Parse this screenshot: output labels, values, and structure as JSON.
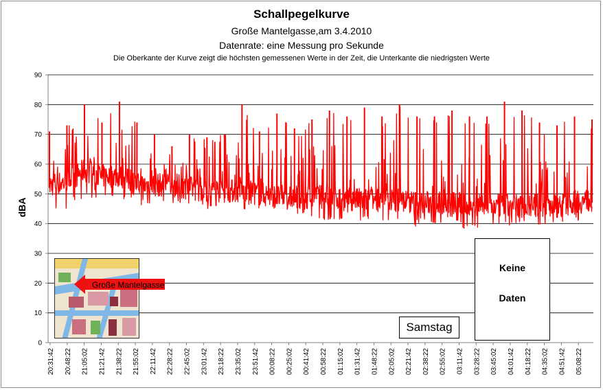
{
  "chart_data": {
    "type": "line",
    "title": "Schallpegelkurve",
    "subtitle_lines": [
      "Große Mantelgasse,am 3.4.2010",
      "Datenrate: eine Messung pro Sekunde",
      "Die Oberkante der Kurve zeigt die höchsten  gemessenen Werte  in der Zeit, die Unterkante  die niedrigsten Werte"
    ],
    "xlabel": "",
    "ylabel": "dBA",
    "ylim": [
      0,
      90
    ],
    "yticks": [
      0,
      10,
      20,
      30,
      40,
      50,
      60,
      70,
      80,
      90
    ],
    "grid": true,
    "legend": "none",
    "line_color": "#ff0000",
    "x_tick_labels": [
      "20:31:42",
      "20:48:22",
      "21:05:02",
      "21:21:42",
      "21:38:22",
      "21:55:02",
      "22:11:42",
      "22:28:22",
      "22:45:02",
      "23:01:42",
      "23:18:22",
      "23:35:02",
      "23:51:42",
      "00:08:22",
      "00:25:02",
      "00:41:42",
      "00:58:22",
      "01:15:02",
      "01:31:42",
      "01:48:22",
      "02:05:02",
      "02:21:42",
      "02:38:22",
      "02:55:02",
      "03:11:42",
      "03:28:22",
      "03:45:02",
      "04:01:42",
      "04:18:22",
      "04:35:02",
      "04:51:42",
      "05:08:22"
    ],
    "series": [
      {
        "upper_envelope": [
          71,
          73,
          80,
          74,
          81,
          74,
          70,
          66,
          70,
          69,
          70,
          80,
          71,
          77,
          72,
          75,
          78,
          76,
          79,
          76,
          80,
          76,
          76,
          78,
          76,
          76,
          81,
          78,
          74,
          73,
          76,
          75
        ],
        "lower_envelope": [
          44,
          45,
          48,
          49,
          49,
          46,
          47,
          47,
          46,
          45,
          44,
          44,
          43,
          43,
          43,
          42,
          41,
          41,
          40,
          40,
          40,
          39,
          40,
          40,
          37,
          37,
          38,
          39,
          39,
          39,
          40,
          41
        ],
        "typical_level": [
          52,
          53,
          57,
          55,
          55,
          52,
          52,
          52,
          51,
          50,
          50,
          50,
          49,
          48,
          48,
          48,
          48,
          47,
          47,
          47,
          47,
          46,
          46,
          46,
          45,
          45,
          45,
          45,
          45,
          45,
          46,
          47
        ]
      }
    ],
    "annotations": {
      "day_label": "Samstag",
      "no_data_line1": "Keine",
      "no_data_line2": "Daten",
      "map_label": "Große Mantelgasse"
    }
  }
}
